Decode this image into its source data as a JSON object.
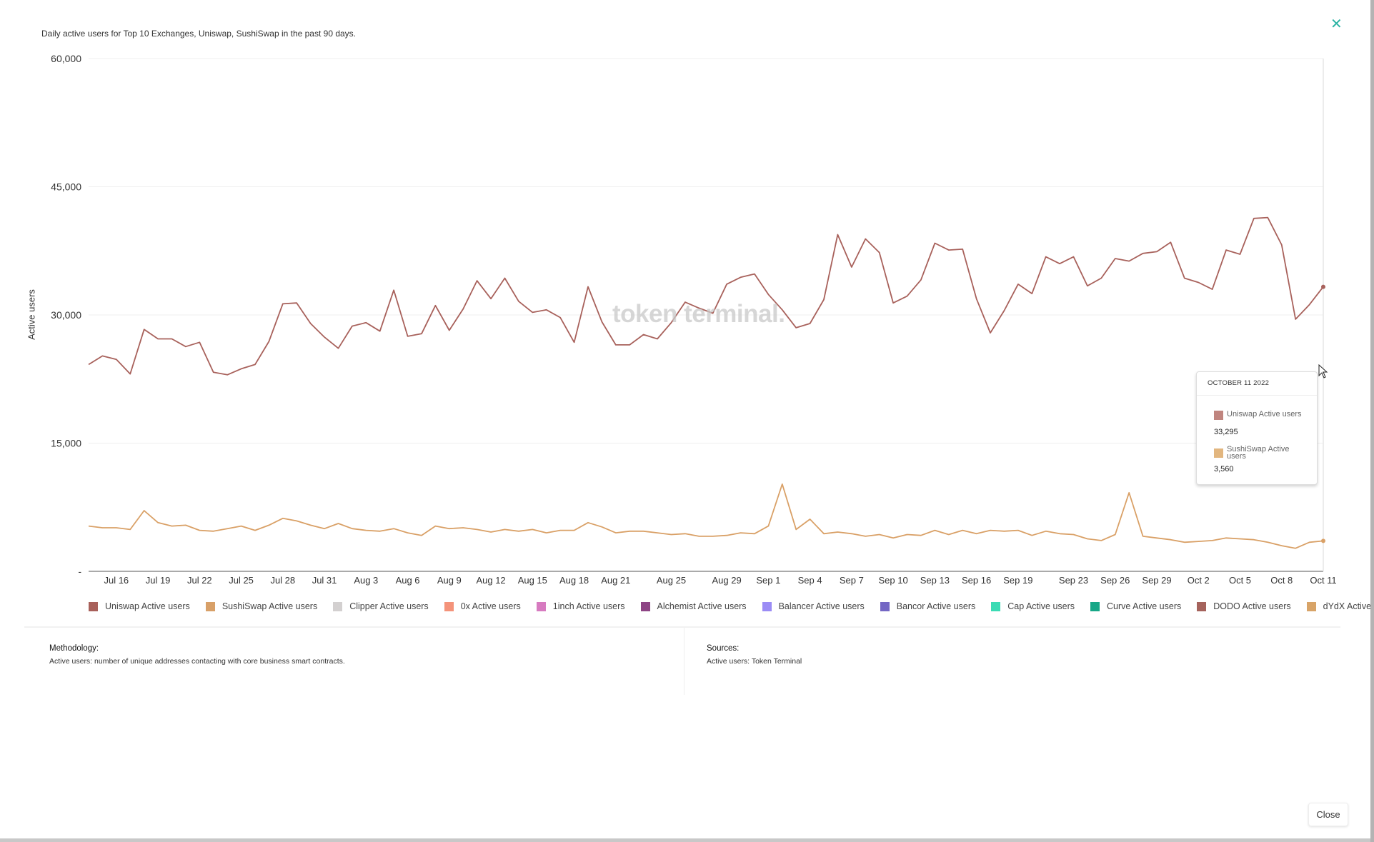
{
  "header": {
    "subtitle": "Daily active users for Top 10 Exchanges, Uniswap, SushiSwap in the past 90 days.",
    "close_icon": "close-x-icon"
  },
  "watermark": "token terminal.",
  "chart_data": {
    "type": "line",
    "ylabel": "Active users",
    "ylim": [
      0,
      60000
    ],
    "y_ticks": [
      "-",
      "15,000",
      "30,000",
      "45,000",
      "60,000"
    ],
    "y_tick_values": [
      0,
      15000,
      30000,
      45000,
      60000
    ],
    "grid": true,
    "x": [
      "2022-07-14",
      "2022-07-15",
      "2022-07-16",
      "2022-07-17",
      "2022-07-18",
      "2022-07-19",
      "2022-07-20",
      "2022-07-21",
      "2022-07-22",
      "2022-07-23",
      "2022-07-24",
      "2022-07-25",
      "2022-07-26",
      "2022-07-27",
      "2022-07-28",
      "2022-07-29",
      "2022-07-30",
      "2022-07-31",
      "2022-08-01",
      "2022-08-02",
      "2022-08-03",
      "2022-08-04",
      "2022-08-05",
      "2022-08-06",
      "2022-08-07",
      "2022-08-08",
      "2022-08-09",
      "2022-08-10",
      "2022-08-11",
      "2022-08-12",
      "2022-08-13",
      "2022-08-14",
      "2022-08-15",
      "2022-08-16",
      "2022-08-17",
      "2022-08-18",
      "2022-08-19",
      "2022-08-20",
      "2022-08-21",
      "2022-08-22",
      "2022-08-23",
      "2022-08-24",
      "2022-08-25",
      "2022-08-26",
      "2022-08-27",
      "2022-08-28",
      "2022-08-29",
      "2022-08-30",
      "2022-08-31",
      "2022-09-01",
      "2022-09-02",
      "2022-09-03",
      "2022-09-04",
      "2022-09-05",
      "2022-09-06",
      "2022-09-07",
      "2022-09-08",
      "2022-09-09",
      "2022-09-10",
      "2022-09-11",
      "2022-09-12",
      "2022-09-13",
      "2022-09-14",
      "2022-09-15",
      "2022-09-16",
      "2022-09-17",
      "2022-09-18",
      "2022-09-19",
      "2022-09-20",
      "2022-09-21",
      "2022-09-22",
      "2022-09-23",
      "2022-09-24",
      "2022-09-25",
      "2022-09-26",
      "2022-09-27",
      "2022-09-28",
      "2022-09-29",
      "2022-09-30",
      "2022-10-01",
      "2022-10-02",
      "2022-10-03",
      "2022-10-04",
      "2022-10-05",
      "2022-10-06",
      "2022-10-07",
      "2022-10-08",
      "2022-10-09",
      "2022-10-10",
      "2022-10-11"
    ],
    "x_ticks": [
      {
        "label": "Jul 16",
        "date": "2022-07-16"
      },
      {
        "label": "Jul 19",
        "date": "2022-07-19"
      },
      {
        "label": "Jul 22",
        "date": "2022-07-22"
      },
      {
        "label": "Jul 25",
        "date": "2022-07-25"
      },
      {
        "label": "Jul 28",
        "date": "2022-07-28"
      },
      {
        "label": "Jul 31",
        "date": "2022-07-31"
      },
      {
        "label": "Aug 3",
        "date": "2022-08-03"
      },
      {
        "label": "Aug 6",
        "date": "2022-08-06"
      },
      {
        "label": "Aug 9",
        "date": "2022-08-09"
      },
      {
        "label": "Aug 12",
        "date": "2022-08-12"
      },
      {
        "label": "Aug 15",
        "date": "2022-08-15"
      },
      {
        "label": "Aug 18",
        "date": "2022-08-18"
      },
      {
        "label": "Aug 21",
        "date": "2022-08-21"
      },
      {
        "label": "Aug 25",
        "date": "2022-08-25"
      },
      {
        "label": "Aug 29",
        "date": "2022-08-29"
      },
      {
        "label": "Sep 1",
        "date": "2022-09-01"
      },
      {
        "label": "Sep 4",
        "date": "2022-09-04"
      },
      {
        "label": "Sep 7",
        "date": "2022-09-07"
      },
      {
        "label": "Sep 10",
        "date": "2022-09-10"
      },
      {
        "label": "Sep 13",
        "date": "2022-09-13"
      },
      {
        "label": "Sep 16",
        "date": "2022-09-16"
      },
      {
        "label": "Sep 19",
        "date": "2022-09-19"
      },
      {
        "label": "Sep 23",
        "date": "2022-09-23"
      },
      {
        "label": "Sep 26",
        "date": "2022-09-26"
      },
      {
        "label": "Sep 29",
        "date": "2022-09-29"
      },
      {
        "label": "Oct 2",
        "date": "2022-10-02"
      },
      {
        "label": "Oct 5",
        "date": "2022-10-05"
      },
      {
        "label": "Oct 8",
        "date": "2022-10-08"
      },
      {
        "label": "Oct 11",
        "date": "2022-10-11"
      }
    ],
    "series": [
      {
        "name": "Uniswap Active users",
        "color": "#a8615b",
        "values": [
          24200,
          25200,
          24800,
          23100,
          28300,
          27200,
          27200,
          26300,
          26800,
          23300,
          23000,
          23700,
          24200,
          26900,
          31300,
          31400,
          29000,
          27400,
          26100,
          28700,
          29100,
          28100,
          32900,
          27500,
          27800,
          31100,
          28200,
          30700,
          34000,
          31900,
          34300,
          31600,
          30300,
          30600,
          29700,
          26800,
          33300,
          29200,
          26500,
          26500,
          27700,
          27200,
          29100,
          31500,
          30800,
          30200,
          33600,
          34400,
          34800,
          32400,
          30600,
          28500,
          29000,
          31800,
          39400,
          35600,
          38900,
          37300,
          31400,
          32200,
          34100,
          38400,
          37600,
          37700,
          31900,
          27900,
          30500,
          33600,
          32500,
          36800,
          36000,
          36800,
          33400,
          34300,
          36600,
          36300,
          37200,
          37400,
          38500,
          34300,
          33800,
          33000,
          37600,
          37100,
          41300,
          41400,
          38200,
          29500,
          31200,
          33295
        ]
      },
      {
        "name": "SushiSwap Active users",
        "color": "#d9a066",
        "values": [
          5300,
          5100,
          5100,
          4900,
          7100,
          5700,
          5300,
          5400,
          4800,
          4700,
          5000,
          5300,
          4800,
          5400,
          6200,
          5900,
          5400,
          5000,
          5600,
          5000,
          4800,
          4700,
          5000,
          4500,
          4200,
          5300,
          5000,
          5100,
          4900,
          4600,
          4900,
          4700,
          4900,
          4500,
          4800,
          4800,
          5700,
          5200,
          4500,
          4700,
          4700,
          4500,
          4300,
          4400,
          4100,
          4100,
          4200,
          4500,
          4400,
          5300,
          10200,
          4900,
          6100,
          4400,
          4600,
          4400,
          4100,
          4300,
          3900,
          4300,
          4200,
          4800,
          4300,
          4800,
          4400,
          4800,
          4700,
          4800,
          4200,
          4700,
          4400,
          4300,
          3800,
          3600,
          4300,
          9200,
          4100,
          3900,
          3700,
          3400,
          3500,
          3600,
          3900,
          3800,
          3700,
          3400,
          3000,
          2700,
          3400,
          3560
        ]
      }
    ],
    "legend_position": "bottom",
    "legend": [
      {
        "label": "Uniswap Active users",
        "color": "#a8605a"
      },
      {
        "label": "SushiSwap Active users",
        "color": "#d8a068"
      },
      {
        "label": "Clipper Active users",
        "color": "#d3d0d0"
      },
      {
        "label": "0x Active users",
        "color": "#f4937a"
      },
      {
        "label": "1inch Active users",
        "color": "#d77bc0"
      },
      {
        "label": "Alchemist Active users",
        "color": "#8e4585"
      },
      {
        "label": "Balancer Active users",
        "color": "#9b8cf5"
      },
      {
        "label": "Bancor Active users",
        "color": "#7467c4"
      },
      {
        "label": "Cap Active users",
        "color": "#3bdbb4"
      },
      {
        "label": "Curve Active users",
        "color": "#17a787"
      },
      {
        "label": "DODO Active users",
        "color": "#a5635c"
      },
      {
        "label": "dYdX Active users",
        "color": "#d8a468"
      }
    ]
  },
  "tooltip": {
    "date": "OCTOBER 11 2022",
    "items": [
      {
        "label": "Uniswap Active users",
        "value": "33,295",
        "color": "#c0857f"
      },
      {
        "label": "SushiSwap Active users",
        "value": "3,560",
        "color": "#e2b67f"
      }
    ]
  },
  "footer": {
    "methodology_title": "Methodology:",
    "methodology_text": "Active users: number of unique addresses contacting with core business smart contracts.",
    "sources_title": "Sources:",
    "sources_text": "Active users: Token Terminal",
    "close_label": "Close"
  }
}
